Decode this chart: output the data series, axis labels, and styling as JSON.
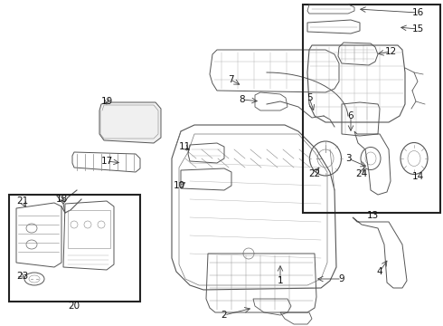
{
  "bg_color": "#ffffff",
  "line_color": "#555555",
  "label_color": "#111111",
  "box_color": "#222222",
  "fig_width": 4.9,
  "fig_height": 3.6,
  "dpi": 100
}
